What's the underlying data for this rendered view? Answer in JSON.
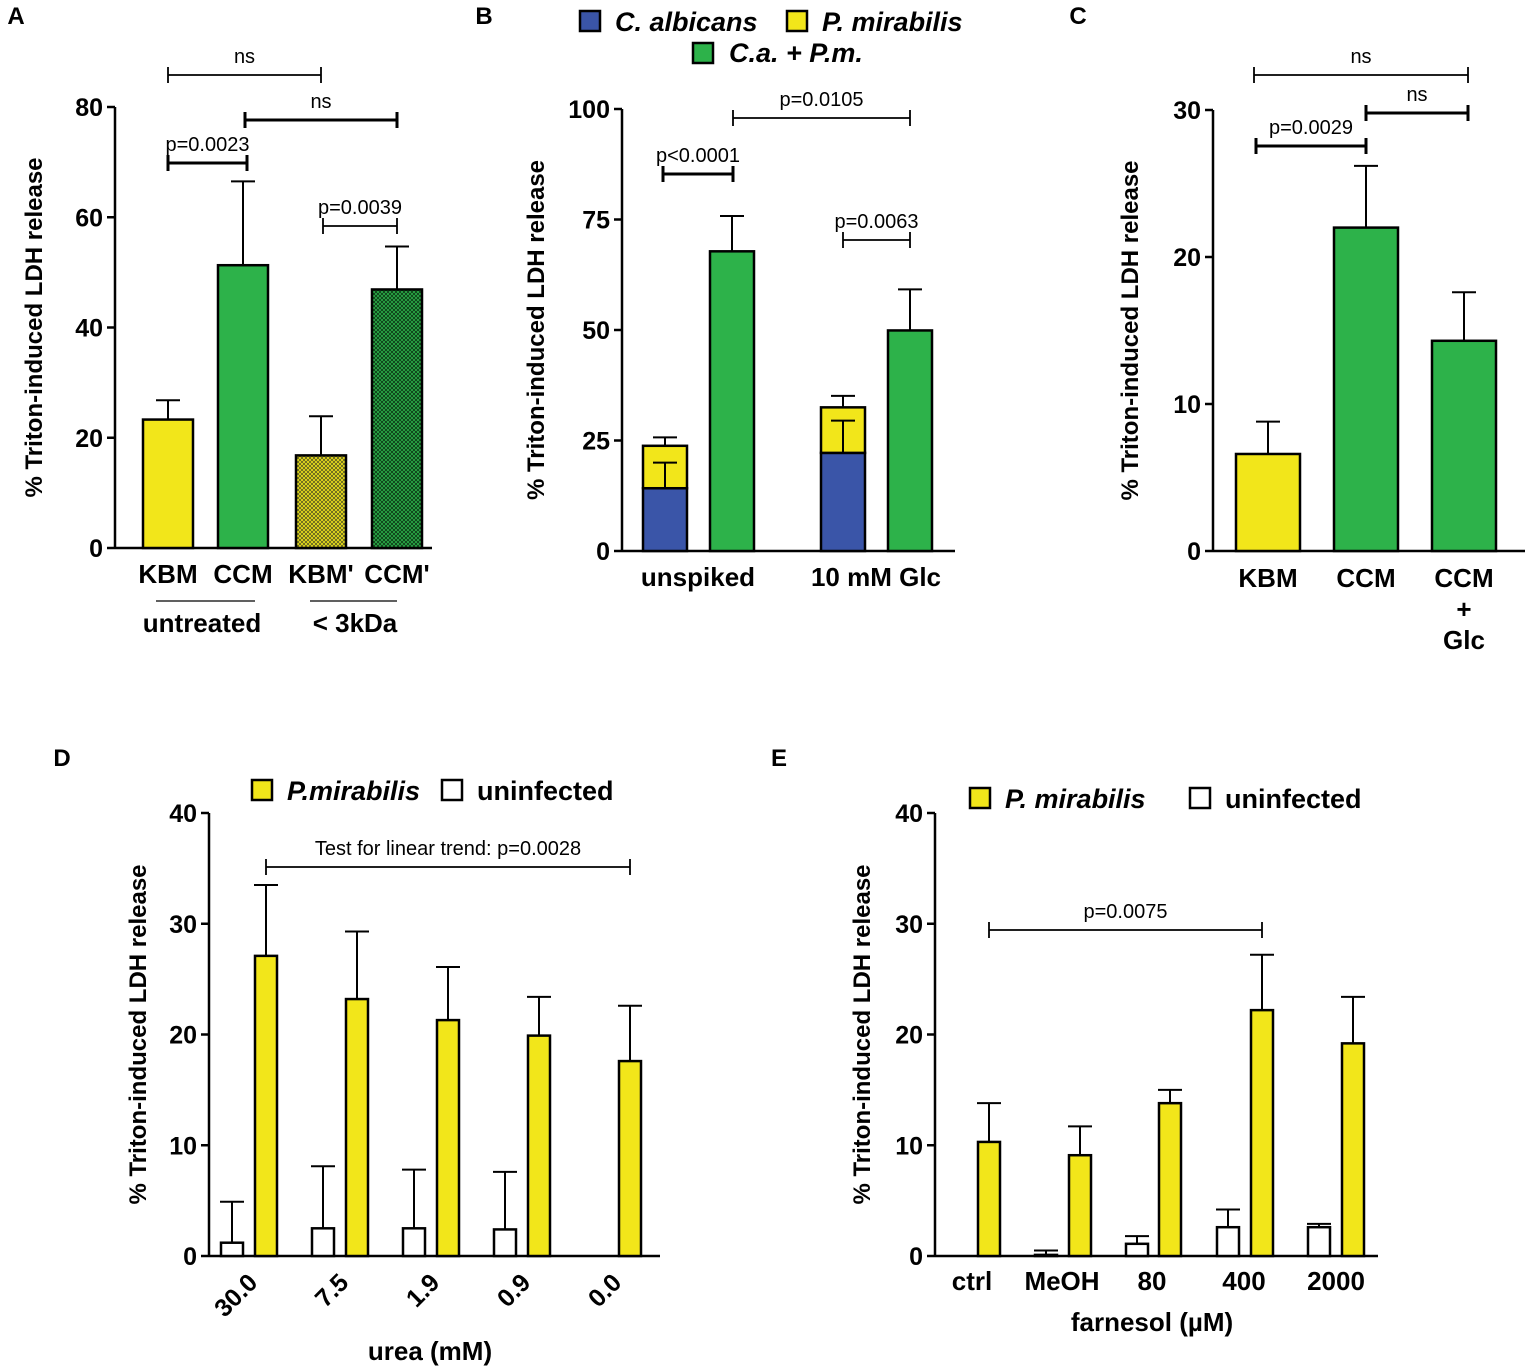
{
  "colors": {
    "yellow": "#f2e61a",
    "green": "#2db24a",
    "blue": "#3a55a8",
    "white": "#ffffff"
  },
  "chart_data": [
    {
      "panel": "A",
      "type": "bar",
      "ylabel": "% Triton-induced LDH release",
      "ylim": [
        0,
        80
      ],
      "yticks": [
        "0",
        "20",
        "40",
        "60",
        "80"
      ],
      "categories": [
        "KBM",
        "CCM",
        "KBM'",
        "CCM'"
      ],
      "values": [
        23.3,
        51.3,
        16.8,
        46.9
      ],
      "errors": [
        3.5,
        15.2,
        7.1,
        7.8
      ],
      "fills": [
        "yellow",
        "green",
        "yellow-hatched",
        "green-hatched"
      ],
      "groups": [
        "untreated",
        "< 3kDa"
      ],
      "comparisons": [
        {
          "from": 0,
          "to": 2,
          "label": "ns"
        },
        {
          "from": 1,
          "to": 3,
          "label": "ns"
        },
        {
          "from": 0,
          "to": 1,
          "label": "p=0.0023"
        },
        {
          "from": 2,
          "to": 3,
          "label": "p=0.0039"
        }
      ]
    },
    {
      "panel": "B",
      "type": "bar",
      "ylabel": "% Triton-induced LDH release",
      "ylim": [
        0,
        100
      ],
      "yticks": [
        "0",
        "25",
        "50",
        "75",
        "100"
      ],
      "legend": [
        "C. albicans",
        "P. mirabilis",
        "C.a. + P.m."
      ],
      "groups": [
        "unspiked",
        "10 mM Glc"
      ],
      "series": [
        {
          "name": "C. albicans",
          "values": [
            14.2,
            22.2
          ],
          "errors": [
            5.8,
            7.3
          ]
        },
        {
          "name": "P. mirabilis",
          "values": [
            9.6,
            10.3
          ],
          "errors": [
            1.9,
            2.6
          ]
        },
        {
          "name": "C.a. + P.m.",
          "values": [
            67.8,
            49.9
          ],
          "errors": [
            8.0,
            9.3
          ]
        }
      ],
      "comparisons": [
        {
          "label": "p<0.0001"
        },
        {
          "label": "p=0.0105"
        },
        {
          "label": "p=0.0063"
        }
      ]
    },
    {
      "panel": "C",
      "type": "bar",
      "ylabel": "% Triton-induced LDH release",
      "ylim": [
        0,
        30
      ],
      "yticks": [
        "0",
        "10",
        "20",
        "30"
      ],
      "categories": [
        "KBM",
        "CCM",
        "CCM\n+\nGlc"
      ],
      "values": [
        6.6,
        22.0,
        14.3
      ],
      "errors": [
        2.2,
        4.2,
        3.3
      ],
      "fills": [
        "yellow",
        "green",
        "green"
      ],
      "comparisons": [
        {
          "from": 0,
          "to": 2,
          "label": "ns"
        },
        {
          "from": 0,
          "to": 1,
          "label": "p=0.0029"
        },
        {
          "from": 1,
          "to": 2,
          "label": "ns"
        }
      ]
    },
    {
      "panel": "D",
      "type": "bar",
      "ylabel": "% Triton-induced LDH release",
      "xlabel": "urea (mM)",
      "ylim": [
        0,
        40
      ],
      "yticks": [
        "0",
        "10",
        "20",
        "30",
        "40"
      ],
      "legend": [
        "P.mirabilis",
        "uninfected"
      ],
      "categories": [
        "30.0",
        "7.5",
        "1.9",
        "0.9",
        "0.0"
      ],
      "series": [
        {
          "name": "uninfected",
          "values": [
            1.2,
            2.5,
            2.5,
            2.4,
            0.0
          ],
          "errors": [
            3.7,
            5.6,
            5.3,
            5.2,
            0.0
          ]
        },
        {
          "name": "P.mirabilis",
          "values": [
            27.1,
            23.2,
            21.3,
            19.9,
            17.6
          ],
          "errors": [
            6.4,
            6.1,
            4.8,
            3.5,
            5.0
          ]
        }
      ],
      "annotation": "Test for linear trend: p=0.0028"
    },
    {
      "panel": "E",
      "type": "bar",
      "ylabel": "% Triton-induced LDH release",
      "xlabel": "farnesol (µM)",
      "ylim": [
        0,
        40
      ],
      "yticks": [
        "0",
        "10",
        "20",
        "30",
        "40"
      ],
      "legend": [
        "P. mirabilis",
        "uninfected"
      ],
      "categories": [
        "ctrl",
        "MeOH",
        "80",
        "400",
        "2000"
      ],
      "series": [
        {
          "name": "uninfected",
          "values": [
            0.0,
            0.1,
            1.1,
            2.6,
            2.6
          ],
          "errors": [
            0.0,
            0.4,
            0.7,
            1.6,
            0.3
          ]
        },
        {
          "name": "P. mirabilis",
          "values": [
            10.3,
            9.1,
            13.8,
            22.2,
            19.2
          ],
          "errors": [
            3.5,
            2.6,
            1.2,
            5.0,
            4.2
          ]
        }
      ],
      "annotation": "p=0.0075"
    }
  ]
}
